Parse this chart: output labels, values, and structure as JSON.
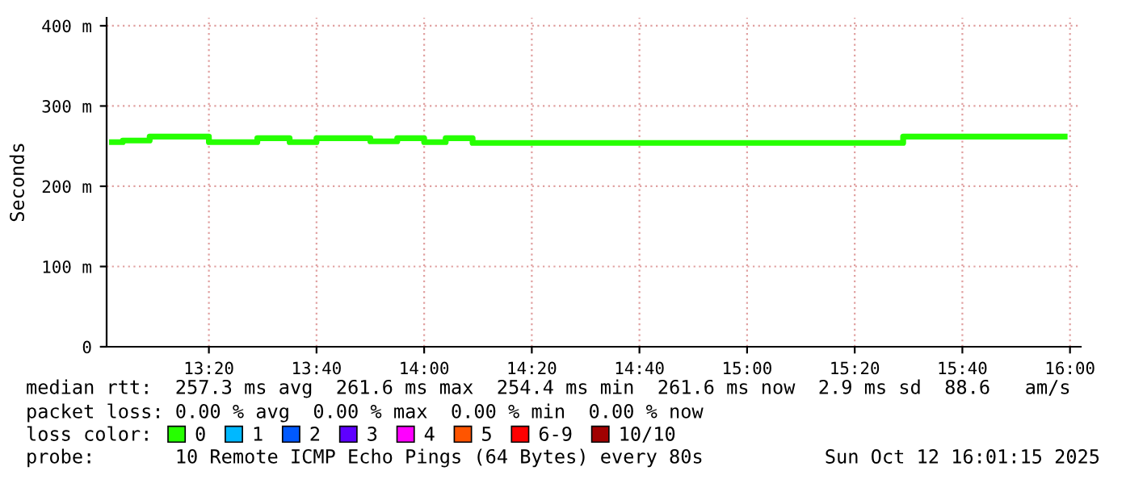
{
  "chart_data": {
    "type": "step",
    "ylabel": "Seconds",
    "x": [
      "2025-10-12T13:02",
      "2025-10-12T13:04",
      "2025-10-12T13:09",
      "2025-10-12T13:20",
      "2025-10-12T13:29",
      "2025-10-12T13:35",
      "2025-10-12T13:40",
      "2025-10-12T13:50",
      "2025-10-12T13:55",
      "2025-10-12T14:00",
      "2025-10-12T14:04",
      "2025-10-12T14:09",
      "2025-10-12T15:29",
      "2025-10-12T15:59"
    ],
    "series": [
      {
        "name": "0",
        "color": "#26ff00",
        "values": [
          255,
          257,
          262,
          255,
          260,
          255,
          260,
          256,
          260,
          255,
          260,
          254,
          262,
          262
        ]
      },
      {
        "name": "1",
        "color": "#00b8ff",
        "values": [
          null,
          null,
          null,
          null,
          null,
          null,
          null,
          null,
          null,
          null,
          null,
          null,
          null,
          null
        ]
      },
      {
        "name": "2",
        "color": "#0059ff",
        "values": [
          null,
          null,
          null,
          null,
          null,
          null,
          null,
          null,
          null,
          null,
          null,
          null,
          null,
          null
        ]
      },
      {
        "name": "3",
        "color": "#5e00ff",
        "values": [
          null,
          null,
          null,
          null,
          null,
          null,
          null,
          null,
          null,
          null,
          null,
          null,
          null,
          null
        ]
      },
      {
        "name": "4",
        "color": "#ff00ff",
        "values": [
          null,
          null,
          null,
          null,
          null,
          null,
          null,
          null,
          null,
          null,
          null,
          null,
          null,
          null
        ]
      },
      {
        "name": "5",
        "color": "#ff5500",
        "values": [
          null,
          null,
          null,
          null,
          null,
          null,
          null,
          null,
          null,
          null,
          null,
          null,
          null,
          null
        ]
      },
      {
        "name": "6-9",
        "color": "#ff0000",
        "values": [
          null,
          null,
          null,
          null,
          null,
          null,
          null,
          null,
          null,
          null,
          null,
          null,
          null,
          null
        ]
      },
      {
        "name": "10/10",
        "color": "#a10000",
        "values": [
          null,
          null,
          null,
          null,
          null,
          null,
          null,
          null,
          null,
          null,
          null,
          null,
          null,
          null
        ]
      }
    ],
    "xlim": [
      "2025-10-12T13:01",
      "2025-10-12T16:02"
    ],
    "xticks": [
      {
        "value": "2025-10-12T13:20",
        "label": "13:20"
      },
      {
        "value": "2025-10-12T13:40",
        "label": "13:40"
      },
      {
        "value": "2025-10-12T14:00",
        "label": "14:00"
      },
      {
        "value": "2025-10-12T14:20",
        "label": "14:20"
      },
      {
        "value": "2025-10-12T14:40",
        "label": "14:40"
      },
      {
        "value": "2025-10-12T15:00",
        "label": "15:00"
      },
      {
        "value": "2025-10-12T15:20",
        "label": "15:20"
      },
      {
        "value": "2025-10-12T15:40",
        "label": "15:40"
      },
      {
        "value": "2025-10-12T16:00",
        "label": "16:00"
      }
    ],
    "ylim": [
      0,
      410
    ],
    "yticks": [
      0,
      {
        "value": 100,
        "label": "100 m"
      },
      {
        "value": 200,
        "label": "200 m"
      },
      {
        "value": 300,
        "label": "300 m"
      },
      {
        "value": 400,
        "label": "400 m"
      }
    ],
    "grid": true,
    "legend": "bottom",
    "annotations": [
      "median rtt:  257.3 ms avg  261.6 ms max  254.4 ms min  261.6 ms now  2.9 ms sd  88.6   am/s",
      "packet loss: 0.00 % avg  0.00 % max  0.00 % min  0.00 % now",
      "loss color:",
      "probe:       10 Remote ICMP Echo Pings (64 Bytes) every 80s",
      "Sun Oct 12 16:01:15 2025"
    ]
  }
}
